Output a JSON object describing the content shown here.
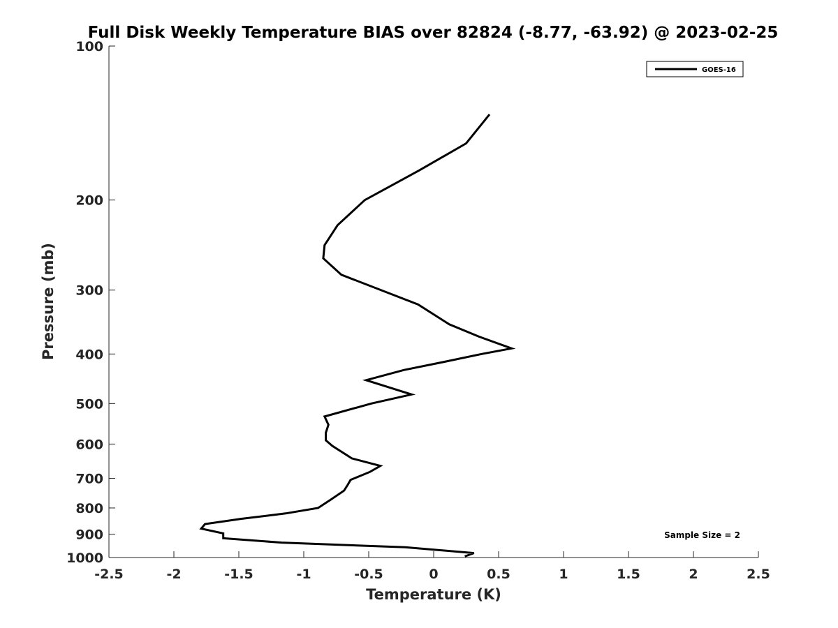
{
  "chart_data": {
    "type": "line",
    "title": "Full Disk Weekly Temperature BIAS over 82824 (-8.77, -63.92) @ 2023-02-25",
    "xlabel": "Temperature (K)",
    "ylabel": "Pressure (mb)",
    "xlim": [
      -2.5,
      2.5
    ],
    "ylim": [
      100,
      1000
    ],
    "y_scale": "log",
    "y_reversed": true,
    "grid": false,
    "legend_position": "top-right",
    "x_ticks": [
      "-2.5",
      "-2",
      "-1.5",
      "-1",
      "-0.5",
      "0",
      "0.5",
      "1",
      "1.5",
      "2",
      "2.5"
    ],
    "y_ticks": [
      "100",
      "200",
      "300",
      "400",
      "500",
      "600",
      "700",
      "800",
      "900",
      "1000"
    ],
    "annotation": "Sample Size = 2",
    "series": [
      {
        "name": "GOES-16",
        "color": "#000000",
        "points": [
          {
            "x": 0.43,
            "p": 136
          },
          {
            "x": 0.25,
            "p": 155
          },
          {
            "x": -0.11,
            "p": 175
          },
          {
            "x": -0.53,
            "p": 200
          },
          {
            "x": -0.74,
            "p": 224
          },
          {
            "x": -0.84,
            "p": 245
          },
          {
            "x": -0.85,
            "p": 260
          },
          {
            "x": -0.71,
            "p": 280
          },
          {
            "x": -0.12,
            "p": 320
          },
          {
            "x": 0.12,
            "p": 350
          },
          {
            "x": 0.35,
            "p": 370
          },
          {
            "x": 0.6,
            "p": 390
          },
          {
            "x": 0.37,
            "p": 400
          },
          {
            "x": 0.07,
            "p": 415
          },
          {
            "x": -0.23,
            "p": 430
          },
          {
            "x": -0.52,
            "p": 450
          },
          {
            "x": -0.33,
            "p": 466
          },
          {
            "x": -0.17,
            "p": 480
          },
          {
            "x": -0.48,
            "p": 500
          },
          {
            "x": -0.84,
            "p": 530
          },
          {
            "x": -0.81,
            "p": 550
          },
          {
            "x": -0.83,
            "p": 570
          },
          {
            "x": -0.83,
            "p": 590
          },
          {
            "x": -0.78,
            "p": 605
          },
          {
            "x": -0.63,
            "p": 640
          },
          {
            "x": -0.41,
            "p": 662
          },
          {
            "x": -0.49,
            "p": 680
          },
          {
            "x": -0.64,
            "p": 705
          },
          {
            "x": -0.66,
            "p": 720
          },
          {
            "x": -0.69,
            "p": 740
          },
          {
            "x": -0.79,
            "p": 770
          },
          {
            "x": -0.89,
            "p": 800
          },
          {
            "x": -1.14,
            "p": 820
          },
          {
            "x": -1.48,
            "p": 840
          },
          {
            "x": -1.76,
            "p": 860
          },
          {
            "x": -1.79,
            "p": 878
          },
          {
            "x": -1.62,
            "p": 897
          },
          {
            "x": -1.62,
            "p": 917
          },
          {
            "x": -1.17,
            "p": 935
          },
          {
            "x": -0.22,
            "p": 955
          },
          {
            "x": 0.31,
            "p": 980
          },
          {
            "x": 0.24,
            "p": 995
          }
        ]
      }
    ]
  }
}
